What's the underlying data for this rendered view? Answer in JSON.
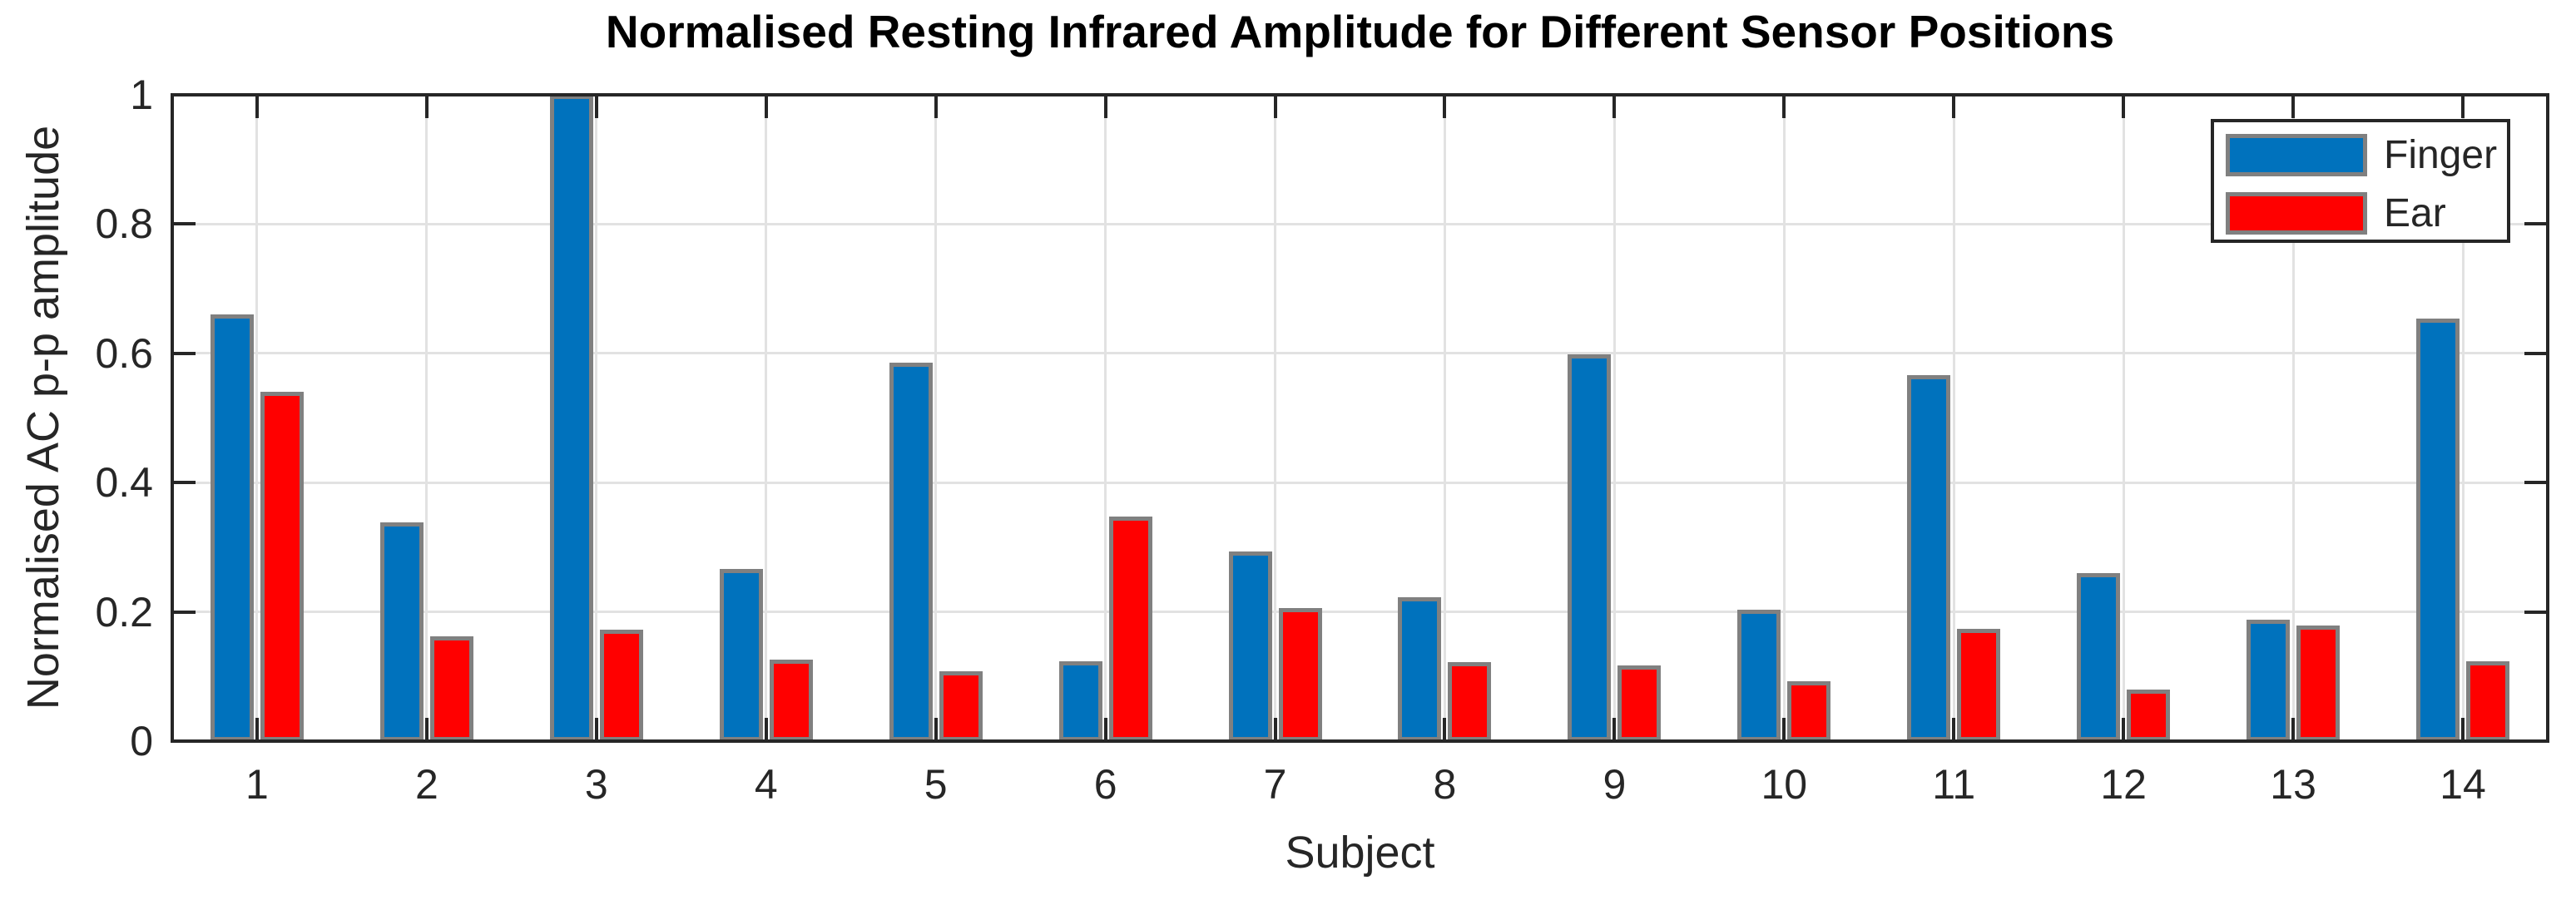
{
  "chart_data": {
    "type": "bar",
    "title": "Normalised Resting Infrared Amplitude for Different Sensor Positions",
    "xlabel": "Subject",
    "ylabel": "Normalised AC p-p amplitude",
    "categories": [
      "1",
      "2",
      "3",
      "4",
      "5",
      "6",
      "7",
      "8",
      "9",
      "10",
      "11",
      "12",
      "13",
      "14"
    ],
    "series": [
      {
        "name": "Finger",
        "color": "#0072BD",
        "values": [
          0.66,
          0.338,
          1.0,
          0.266,
          0.586,
          0.124,
          0.293,
          0.223,
          0.598,
          0.203,
          0.566,
          0.26,
          0.188,
          0.654
        ]
      },
      {
        "name": "Ear",
        "color": "#FF0000",
        "values": [
          0.54,
          0.162,
          0.172,
          0.126,
          0.108,
          0.348,
          0.206,
          0.122,
          0.117,
          0.093,
          0.174,
          0.08,
          0.179,
          0.123
        ]
      }
    ],
    "ylim": [
      0,
      1
    ],
    "yticks": [
      0,
      0.2,
      0.4,
      0.6,
      0.8,
      1
    ],
    "ytick_labels": [
      "0",
      "0.2",
      "0.4",
      "0.6",
      "0.8",
      "1"
    ],
    "grid": "on",
    "legend_position": "top-right",
    "bar_edge_color": "#808080",
    "grid_color": "#e2e2e2",
    "axis_color": "#262626"
  }
}
